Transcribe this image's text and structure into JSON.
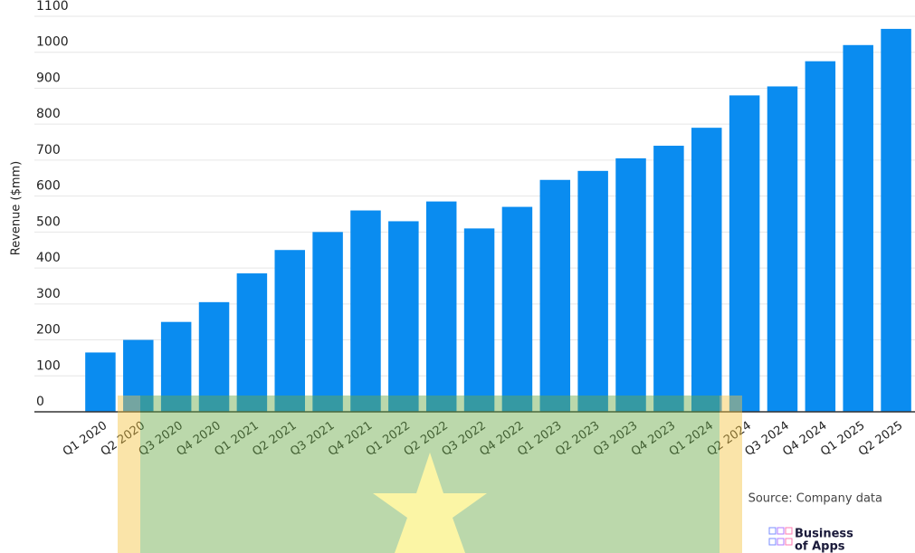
{
  "chart_data": {
    "type": "bar",
    "y_label": "Revenue ($mm)",
    "categories": [
      "Q1 2020",
      "Q2 2020",
      "Q3 2020",
      "Q4 2020",
      "Q1 2021",
      "Q2 2021",
      "Q3 2021",
      "Q4 2021",
      "Q1 2022",
      "Q2 2022",
      "Q3 2022",
      "Q4 2022",
      "Q1 2023",
      "Q2 2023",
      "Q3 2023",
      "Q4 2023",
      "Q1 2024",
      "Q2 2024",
      "Q3 2024",
      "Q4 2024",
      "Q1 2025",
      "Q2 2025"
    ],
    "values": [
      165,
      200,
      250,
      305,
      385,
      450,
      500,
      560,
      530,
      585,
      510,
      570,
      645,
      670,
      705,
      740,
      790,
      880,
      905,
      975,
      1020,
      1065
    ],
    "color": "#0a8cf0",
    "ylim": [
      0,
      1100
    ],
    "yticks": [
      0,
      100,
      200,
      300,
      400,
      500,
      600,
      700,
      800,
      900,
      1000,
      1100
    ],
    "grid": true,
    "source": "Source: Company data",
    "brand": [
      "Business",
      "of Apps"
    ]
  }
}
